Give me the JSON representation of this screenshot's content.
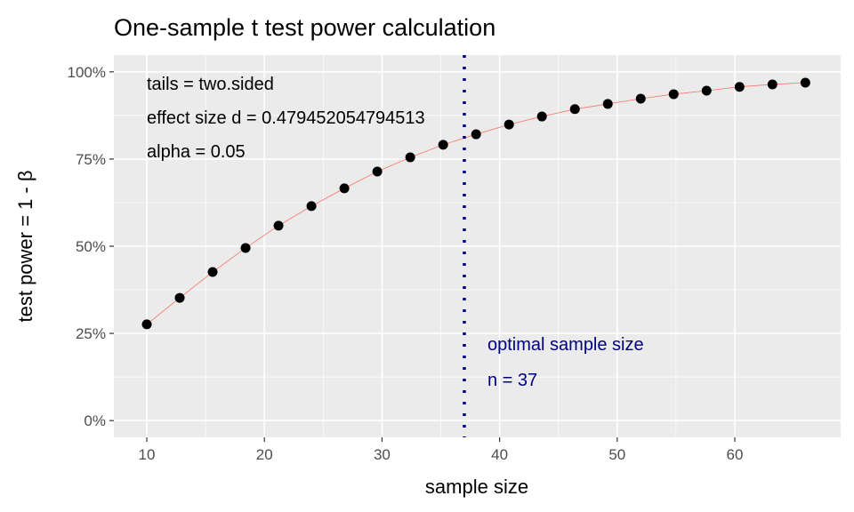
{
  "chart_data": {
    "type": "scatter",
    "title": "One-sample t test power calculation",
    "xlabel": "sample size",
    "ylabel": "test power = 1 - β",
    "xlim": [
      7.2,
      69.0
    ],
    "ylim": [
      -4.8,
      104.8
    ],
    "grid": true,
    "x_ticks": [
      10,
      20,
      30,
      40,
      50,
      60
    ],
    "x_tick_labels": [
      "10",
      "20",
      "30",
      "40",
      "50",
      "60"
    ],
    "y_ticks": [
      0,
      25,
      50,
      75,
      100
    ],
    "y_tick_labels": [
      "0%",
      "25%",
      "50%",
      "75%",
      "100%"
    ],
    "series": [
      {
        "name": "power",
        "color": "#000000",
        "line_color": "#f8766d",
        "x": [
          10,
          12.8,
          15.6,
          18.4,
          21.2,
          24,
          26.8,
          29.6,
          32.4,
          35.2,
          38,
          40.8,
          43.6,
          46.4,
          49.2,
          52,
          54.8,
          57.6,
          60.4,
          63.2,
          66
        ],
        "y": [
          27.6,
          35.2,
          42.6,
          49.5,
          55.9,
          61.5,
          66.6,
          71.4,
          75.5,
          79.1,
          82.1,
          84.9,
          87.2,
          89.3,
          90.8,
          92.3,
          93.6,
          94.6,
          95.7,
          96.4,
          96.9
        ]
      }
    ],
    "vline": {
      "x": 37,
      "color": "#000080"
    },
    "annotations": {
      "params": [
        "tails = two.sided",
        "effect size d = 0.479452054794513",
        "alpha = 0.05"
      ],
      "optimal": [
        "optimal sample size",
        "n = 37"
      ]
    }
  }
}
